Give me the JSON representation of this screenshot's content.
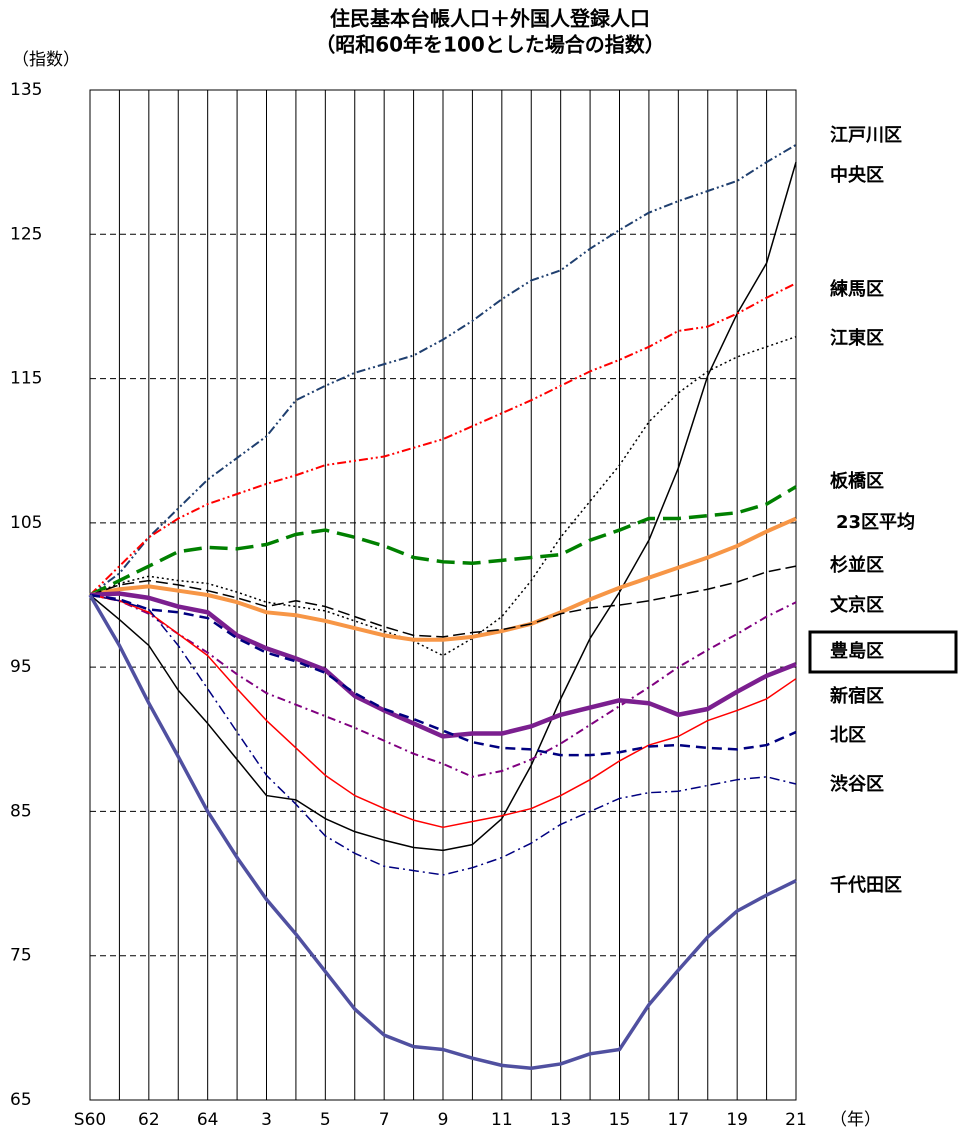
{
  "chart_data": {
    "type": "line",
    "title": [
      "住民基本台帳人口＋外国人登録人口",
      "（昭和60年を100とした場合の指数）"
    ],
    "y_label": "（指数）",
    "x_label": "（年）",
    "categories": [
      "S60",
      null,
      "62",
      null,
      "64",
      null,
      "3",
      null,
      "5",
      null,
      "7",
      null,
      "9",
      null,
      "11",
      null,
      "13",
      null,
      "15",
      null,
      "17",
      null,
      "19",
      null,
      "21"
    ],
    "ylim": [
      65,
      135
    ],
    "yticks": [
      135,
      125,
      115,
      105,
      95,
      85,
      75,
      65
    ],
    "grid": true,
    "series": [
      {
        "name": "江戸川区",
        "color": "#1f3f6f",
        "dash": "9,3,2,3,2,3",
        "width": 2,
        "values": [
          100,
          101.5,
          104,
          106,
          108,
          109.5,
          111,
          113.5,
          114.5,
          115.4,
          116,
          116.6,
          117.7,
          119,
          120.5,
          121.8,
          122.5,
          124,
          125.3,
          126.5,
          127.3,
          128,
          128.7,
          130,
          131.2
        ]
      },
      {
        "name": "中央区",
        "color": "#000000",
        "dash": "none",
        "width": 1.5,
        "values": [
          100,
          98.3,
          96.5,
          93.4,
          91.1,
          88.6,
          86.1,
          85.8,
          84.5,
          83.6,
          83,
          82.5,
          82.3,
          82.7,
          84.5,
          88.2,
          92.8,
          97,
          100.2,
          103.8,
          108.8,
          115.2,
          119.5,
          123,
          130
        ]
      },
      {
        "name": "練馬区",
        "color": "#ff0000",
        "dash": "9,3,2,3,2,3",
        "width": 2,
        "values": [
          100,
          102,
          104,
          105.3,
          106.3,
          107,
          107.7,
          108.3,
          109,
          109.3,
          109.6,
          110.2,
          110.8,
          111.7,
          112.6,
          113.5,
          114.5,
          115.5,
          116.3,
          117.2,
          118.3,
          118.6,
          119.5,
          120.6,
          121.6
        ]
      },
      {
        "name": "江東区",
        "color": "#000000",
        "dash": "2,3",
        "width": 1.5,
        "values": [
          100,
          100.8,
          101.3,
          101,
          100.8,
          100.2,
          99.5,
          99.2,
          98.9,
          98.2,
          97.5,
          96.8,
          95.8,
          97,
          98.5,
          101,
          104,
          106.5,
          109,
          112,
          114,
          115.5,
          116.5,
          117.2,
          117.9
        ]
      },
      {
        "name": "板橋区",
        "color": "#008000",
        "dash": "18,8",
        "width": 3.5,
        "values": [
          100,
          101,
          102,
          103,
          103.3,
          103.2,
          103.5,
          104.2,
          104.5,
          104,
          103.4,
          102.6,
          102.3,
          102.2,
          102.4,
          102.6,
          102.8,
          103.8,
          104.5,
          105.3,
          105.3,
          105.5,
          105.7,
          106.3,
          107.5
        ]
      },
      {
        "name": "23区平均",
        "color": "#f79646",
        "dash": "none",
        "width": 4,
        "values": [
          100,
          100.4,
          100.6,
          100.3,
          100,
          99.5,
          98.8,
          98.6,
          98.2,
          97.7,
          97.2,
          96.9,
          96.9,
          97.1,
          97.5,
          98,
          98.8,
          99.7,
          100.5,
          101.2,
          101.9,
          102.6,
          103.4,
          104.4,
          105.3
        ]
      },
      {
        "name": "杉並区",
        "color": "#000000",
        "dash": "12,5",
        "width": 1.5,
        "values": [
          100,
          100.7,
          101,
          100.7,
          100.3,
          99.8,
          99.2,
          99.6,
          99.2,
          98.5,
          97.8,
          97.2,
          97.1,
          97.4,
          97.6,
          98,
          98.7,
          99.1,
          99.3,
          99.6,
          100,
          100.4,
          100.9,
          101.6,
          102
        ]
      },
      {
        "name": "文京区",
        "color": "#800080",
        "dash": "8,4,2,4",
        "width": 2,
        "values": [
          100,
          99.6,
          98.7,
          97.3,
          96,
          94.5,
          93.2,
          92.4,
          91.6,
          90.8,
          89.9,
          89,
          88.3,
          87.4,
          87.8,
          88.6,
          89.7,
          91,
          92.3,
          93.6,
          95,
          96.2,
          97.3,
          98.5,
          99.5
        ]
      },
      {
        "name": "豊島区",
        "color": "#7b1f8f",
        "dash": "none",
        "width": 4.5,
        "values": [
          100,
          100.1,
          99.8,
          99.2,
          98.8,
          97.2,
          96.3,
          95.6,
          94.8,
          93,
          92,
          91.1,
          90.2,
          90.4,
          90.4,
          90.9,
          91.7,
          92.2,
          92.7,
          92.5,
          91.7,
          92.1,
          93.3,
          94.4,
          95.2
        ]
      },
      {
        "name": "新宿区",
        "color": "#ff0000",
        "dash": "none",
        "width": 1.5,
        "values": [
          100,
          99.6,
          98.8,
          97.3,
          95.8,
          93.5,
          91.3,
          89.4,
          87.5,
          86.1,
          85.2,
          84.4,
          83.9,
          84.3,
          84.7,
          85.2,
          86.1,
          87.2,
          88.5,
          89.6,
          90.2,
          91.3,
          92,
          92.8,
          94.2
        ]
      },
      {
        "name": "北区",
        "color": "#000080",
        "dash": "10,6",
        "width": 2.5,
        "values": [
          100,
          99.7,
          99,
          98.8,
          98.4,
          97,
          96,
          95.4,
          94.6,
          93.2,
          92.1,
          91.4,
          90.6,
          89.8,
          89.4,
          89.3,
          88.9,
          88.9,
          89.1,
          89.5,
          89.6,
          89.4,
          89.3,
          89.6,
          90.5
        ]
      },
      {
        "name": "渋谷区",
        "color": "#000080",
        "dash": "10,4,2,4",
        "width": 1.5,
        "values": [
          100,
          99.6,
          99,
          96.5,
          93.5,
          90.5,
          87.5,
          85.5,
          83.3,
          82.1,
          81.2,
          80.9,
          80.6,
          81.1,
          81.8,
          82.8,
          84.1,
          85,
          85.9,
          86.3,
          86.4,
          86.8,
          87.2,
          87.4,
          86.9
        ]
      },
      {
        "name": "千代田区",
        "color": "#5050a0",
        "dash": "none",
        "width": 3.5,
        "values": [
          100,
          96.5,
          92.5,
          88.8,
          85,
          81.8,
          78.9,
          76.5,
          73.9,
          71.3,
          69.5,
          68.7,
          68.5,
          67.9,
          67.4,
          67.2,
          67.5,
          68.2,
          68.5,
          71.6,
          74,
          76.3,
          78.1,
          79.2,
          80.2
        ]
      }
    ]
  }
}
